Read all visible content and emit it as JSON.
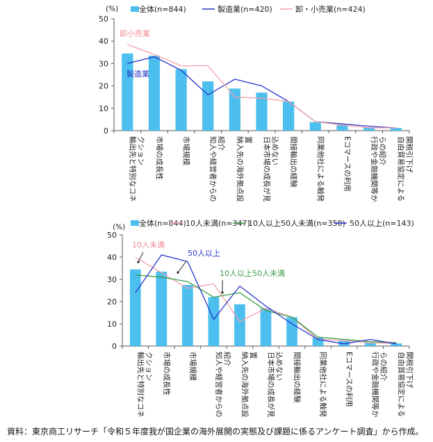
{
  "chart_data": [
    {
      "type": "bar+line",
      "unit": "(%)",
      "ylim": [
        0,
        50
      ],
      "yticks": [
        0,
        10,
        20,
        30,
        40,
        50
      ],
      "categories": [
        "輸出先と特別なコネクション",
        "市場の成長性",
        "市場規模",
        "知人や経営者からの紹介",
        "納入先の海外拠点設置",
        "日本市場の成長が見込めない",
        "間接輸出の経験",
        "同業他社による触発",
        "Eコマースの利用",
        "行政や金融機関等からの紹介",
        "自由貿易協定による関税引下げ"
      ],
      "series": [
        {
          "name": "全体(n=844)",
          "kind": "bar",
          "color": "#4dbfef",
          "values": [
            34.5,
            33.5,
            27.5,
            22,
            18.8,
            17,
            13,
            3.8,
            2.4,
            1.5,
            1.2
          ]
        },
        {
          "name": "製造業(n=420)",
          "kind": "line",
          "color": "#2433c8",
          "values": [
            30,
            33,
            27,
            16,
            23,
            20,
            13,
            4,
            3,
            2,
            1.2
          ]
        },
        {
          "name": "卸・小売業(n=424)",
          "kind": "line",
          "color": "#f4a0aa",
          "values": [
            38.5,
            34,
            29,
            29,
            15,
            14.5,
            13,
            4,
            2.5,
            1.3,
            1.2
          ]
        }
      ],
      "annotations": [
        {
          "text": "卸小売業",
          "color": "#f08a96"
        },
        {
          "text": "製造業",
          "color": "#2433c8"
        }
      ]
    },
    {
      "type": "bar+line",
      "unit": "(%)",
      "ylim": [
        0,
        50
      ],
      "yticks": [
        0,
        10,
        20,
        30,
        40,
        50
      ],
      "categories": [
        "輸出先と特別なコネクション",
        "市場の成長性",
        "市場規模",
        "知人や経営者からの紹介",
        "納入先の海外拠点設置",
        "日本市場の成長が見込めない",
        "間接輸出の経験",
        "同業他社による触発",
        "Eコマースの利用",
        "行政や金融機関等からの紹介",
        "自由貿易協定による関税引下げ"
      ],
      "series": [
        {
          "name": "全体(n=844)",
          "kind": "bar",
          "color": "#4dbfef",
          "values": [
            34.5,
            33.5,
            27.5,
            22,
            18.8,
            17,
            13,
            3.8,
            2.4,
            1.5,
            1.2
          ]
        },
        {
          "name": "10人未満(n=347)",
          "kind": "line",
          "color": "#f4a0aa",
          "values": [
            40,
            33,
            26,
            28,
            11,
            17,
            13,
            3,
            2.5,
            1.5,
            1.2
          ]
        },
        {
          "name": "10人以上50人未満(n=350)",
          "kind": "line",
          "color": "#3a9a46",
          "values": [
            32,
            31,
            29,
            22,
            24,
            16,
            13,
            4,
            3,
            2,
            1.5
          ]
        },
        {
          "name": "50人以上(n=143)",
          "kind": "line",
          "color": "#2433c8",
          "values": [
            24,
            41,
            38,
            12,
            27,
            18,
            10,
            3,
            1,
            3,
            1
          ]
        }
      ],
      "annotations": [
        {
          "text": "10人未満",
          "color": "#f08a96"
        },
        {
          "text": "50人以上",
          "color": "#2433c8"
        },
        {
          "text": "10人以上50人未満",
          "color": "#3a9a46"
        }
      ]
    }
  ],
  "source_note": "資料：東京商工リサーチ「令和５年度我が国企業の海外展開の実態及び課題に係るアンケート調査」から作成。"
}
